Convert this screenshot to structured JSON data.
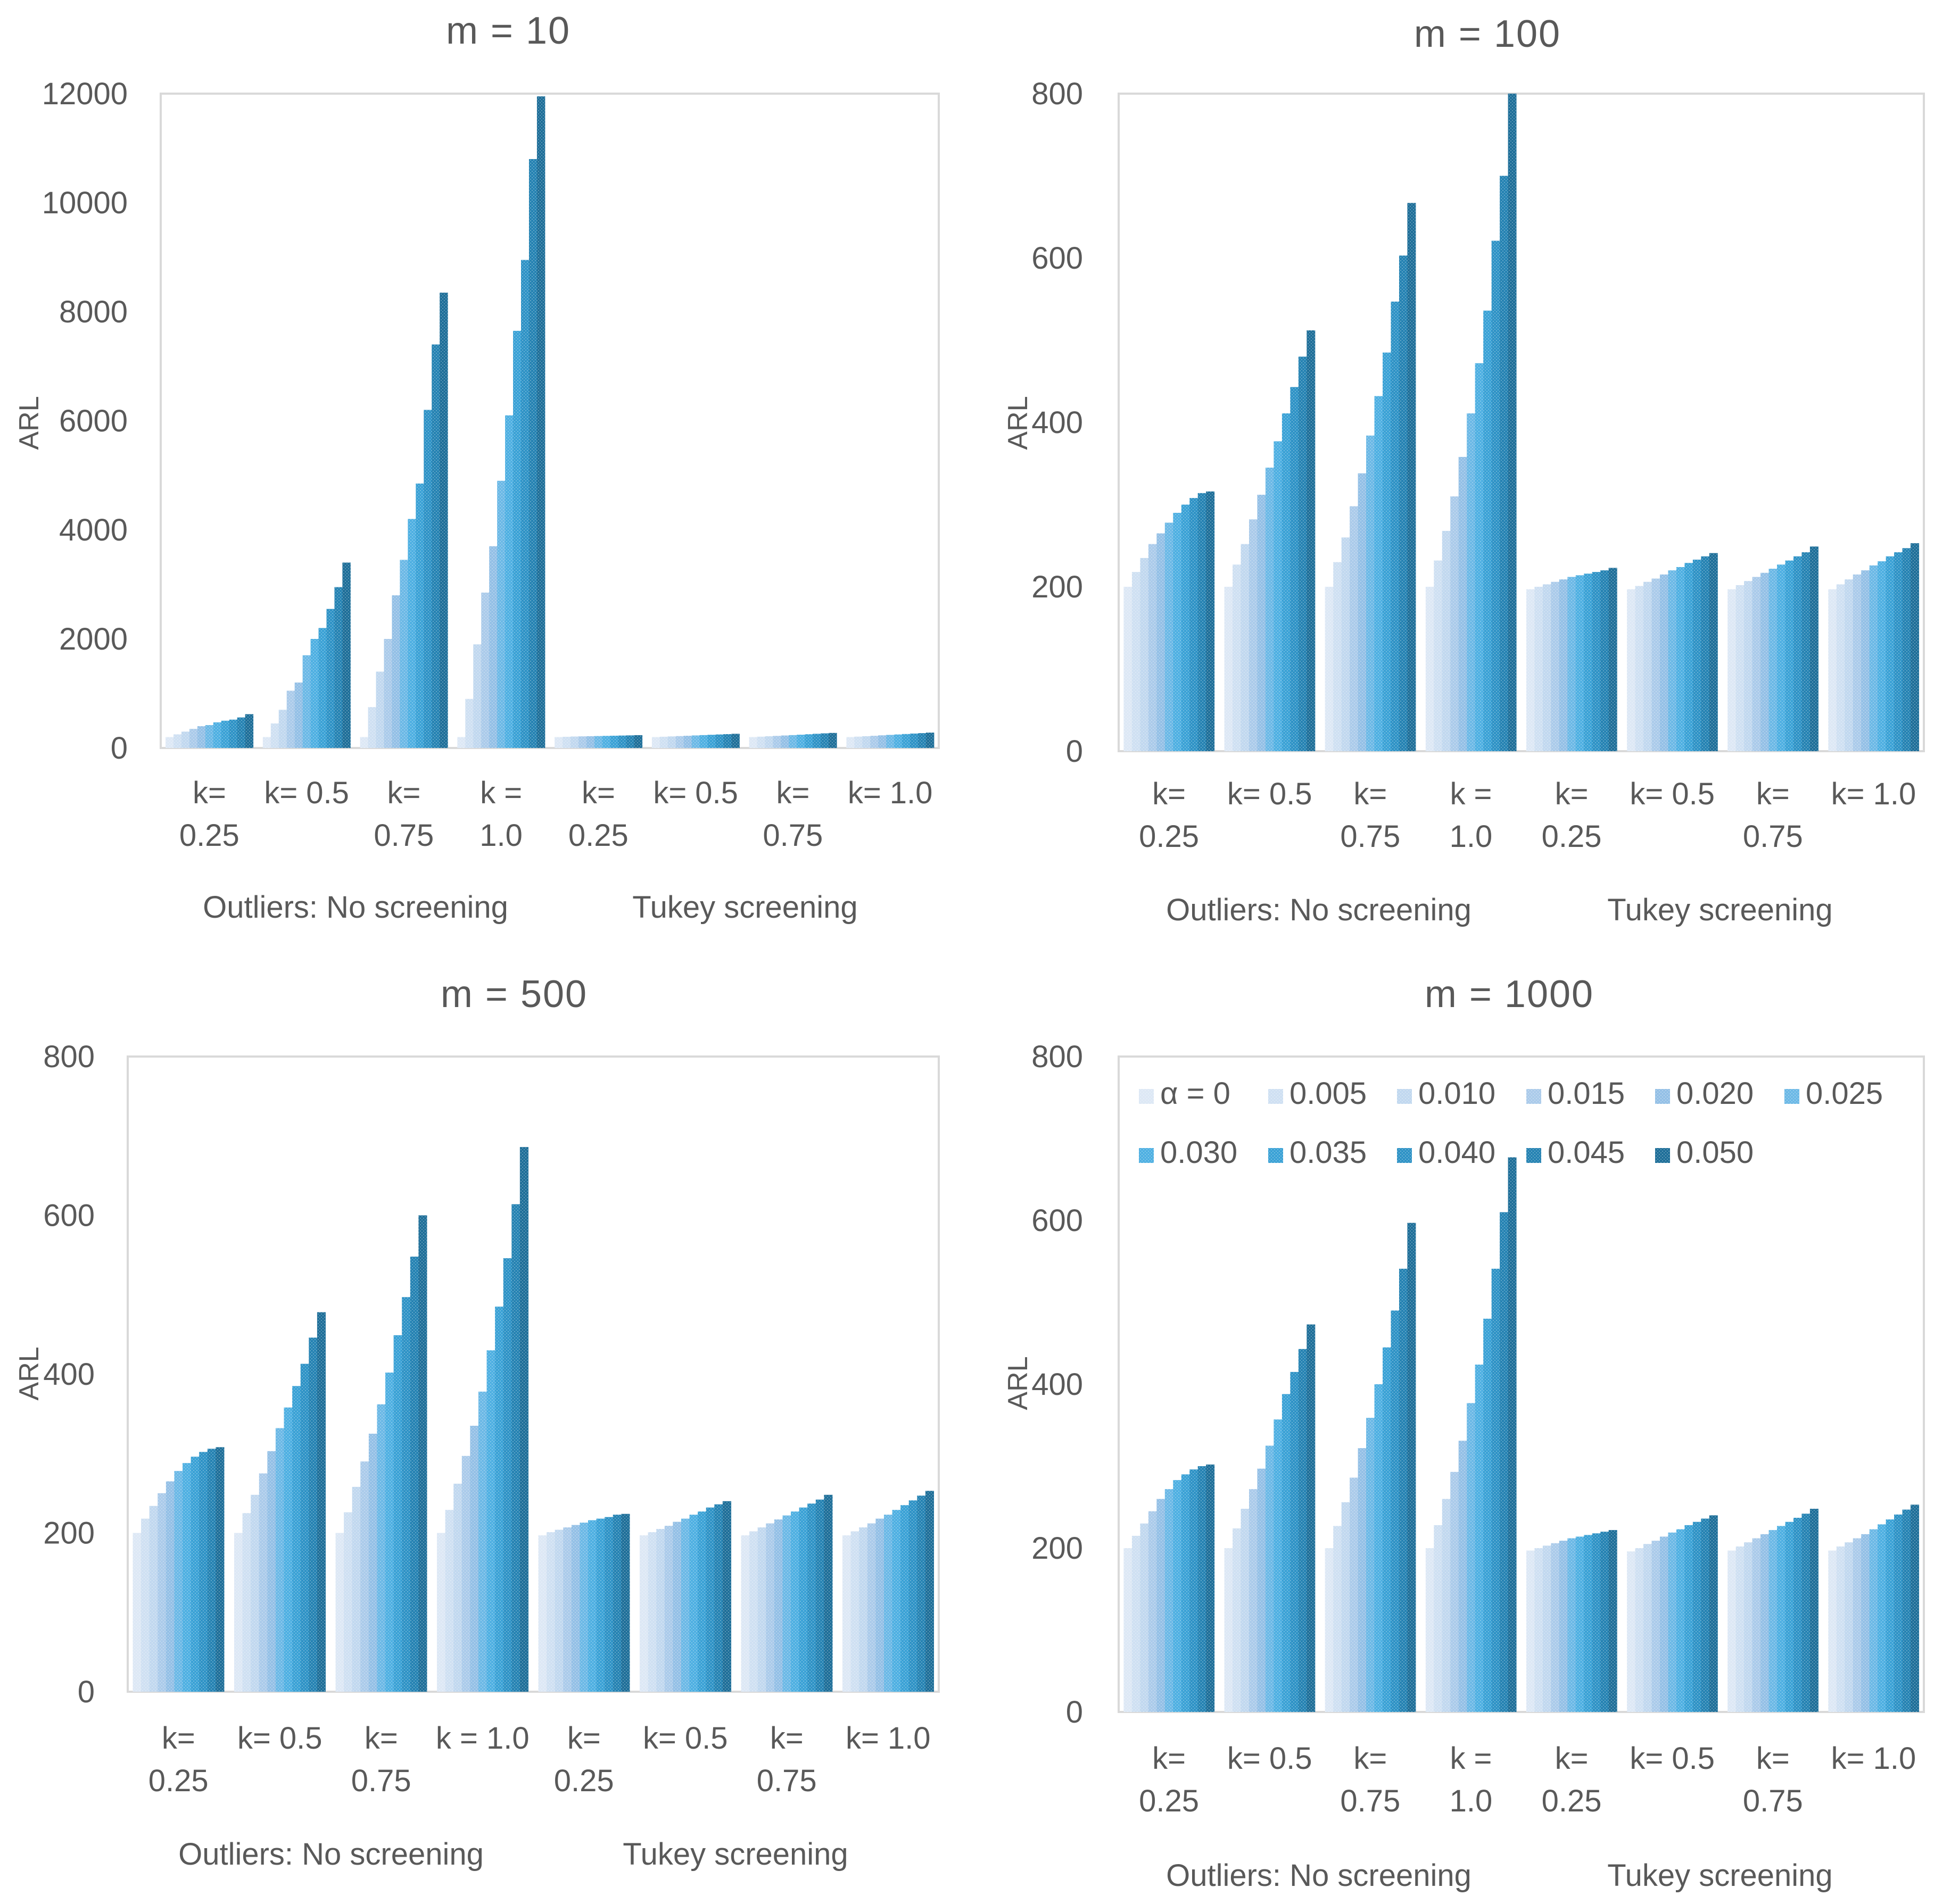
{
  "legend": {
    "labels": [
      "α = 0",
      "0.005",
      "0.010",
      "0.015",
      "0.020",
      "0.025",
      "0.030",
      "0.035",
      "0.040",
      "0.045",
      "0.050"
    ],
    "colors": [
      "#dde8f5",
      "#cfe0f2",
      "#c1d8ef",
      "#abcbea",
      "#94c0e6",
      "#6cb9e6",
      "#4fb0e2",
      "#3ba2d6",
      "#2f93c6",
      "#2683b3",
      "#1f6f99"
    ]
  },
  "chart_data": [
    {
      "type": "bar",
      "title": "m = 10",
      "ylabel": "ARL",
      "xlabel": "",
      "ylim": [
        0,
        12000
      ],
      "yticks": [
        0,
        2000,
        4000,
        6000,
        8000,
        10000,
        12000
      ],
      "categories": [
        [
          "k=",
          "0.25"
        ],
        [
          "k= 0.5"
        ],
        [
          "k=",
          "0.75"
        ],
        [
          "k =",
          "1.0"
        ],
        [
          "k=",
          "0.25"
        ],
        [
          "k= 0.5"
        ],
        [
          "k=",
          "0.75"
        ],
        [
          "k= 1.0"
        ]
      ],
      "groups": [
        "Outliers: No screening",
        "Tukey screening"
      ],
      "series_values": [
        [
          200,
          250,
          300,
          350,
          400,
          420,
          470,
          500,
          520,
          560,
          620
        ],
        [
          200,
          450,
          700,
          1050,
          1200,
          1700,
          2000,
          2200,
          2550,
          2950,
          3400
        ],
        [
          200,
          750,
          1400,
          2000,
          2800,
          3450,
          4200,
          4850,
          6200,
          7400,
          8350
        ],
        [
          200,
          900,
          1900,
          2850,
          3700,
          4900,
          6100,
          7650,
          8950,
          10800,
          11950
        ],
        [
          200,
          205,
          210,
          213,
          216,
          219,
          222,
          225,
          228,
          231,
          235
        ],
        [
          200,
          206,
          212,
          218,
          224,
          230,
          236,
          242,
          248,
          254,
          260
        ],
        [
          200,
          207,
          215,
          222,
          229,
          236,
          244,
          252,
          260,
          268,
          276
        ],
        [
          200,
          208,
          216,
          224,
          232,
          240,
          248,
          256,
          264,
          272,
          282
        ]
      ],
      "legend_position": "none"
    },
    {
      "type": "bar",
      "title": "m = 100",
      "ylabel": "ARL",
      "xlabel": "",
      "ylim": [
        0,
        800
      ],
      "yticks": [
        0,
        200,
        400,
        600,
        800
      ],
      "categories": [
        [
          "k=",
          "0.25"
        ],
        [
          "k= 0.5"
        ],
        [
          "k=",
          "0.75"
        ],
        [
          "k =",
          "1.0"
        ],
        [
          "k=",
          "0.25"
        ],
        [
          "k= 0.5"
        ],
        [
          "k=",
          "0.75"
        ],
        [
          "k= 1.0"
        ]
      ],
      "groups": [
        "Outliers: No screening",
        "Tukey screening"
      ],
      "series_values": [
        [
          200,
          218,
          235,
          252,
          265,
          278,
          290,
          300,
          308,
          314,
          316
        ],
        [
          200,
          227,
          252,
          282,
          312,
          345,
          377,
          411,
          443,
          480,
          512
        ],
        [
          200,
          230,
          260,
          298,
          338,
          384,
          432,
          485,
          547,
          603,
          667
        ],
        [
          200,
          232,
          268,
          310,
          358,
          411,
          472,
          536,
          621,
          700,
          800
        ],
        [
          197,
          200,
          203,
          206,
          209,
          212,
          214,
          216,
          218,
          220,
          223
        ],
        [
          197,
          201,
          206,
          210,
          215,
          220,
          224,
          229,
          233,
          237,
          241
        ],
        [
          197,
          202,
          207,
          212,
          217,
          222,
          227,
          232,
          237,
          242,
          249
        ],
        [
          197,
          203,
          209,
          215,
          220,
          226,
          231,
          237,
          242,
          247,
          253
        ]
      ],
      "legend_position": "none"
    },
    {
      "type": "bar",
      "title": "m = 500",
      "ylabel": "ARL",
      "xlabel": "",
      "ylim": [
        0,
        800
      ],
      "yticks": [
        0,
        200,
        400,
        600,
        800
      ],
      "categories": [
        [
          "k=",
          "0.25"
        ],
        [
          "k= 0.5"
        ],
        [
          "k=",
          "0.75"
        ],
        [
          "k = 1.0"
        ],
        [
          "k=",
          "0.25"
        ],
        [
          "k= 0.5"
        ],
        [
          "k=",
          "0.75"
        ],
        [
          "k= 1.0"
        ]
      ],
      "groups": [
        "Outliers: No screening",
        "Tukey screening"
      ],
      "series_values": [
        [
          200,
          218,
          234,
          250,
          265,
          278,
          288,
          296,
          302,
          306,
          308
        ],
        [
          200,
          225,
          248,
          275,
          303,
          332,
          358,
          385,
          413,
          446,
          478
        ],
        [
          200,
          226,
          258,
          290,
          325,
          362,
          402,
          449,
          497,
          548,
          600
        ],
        [
          200,
          229,
          262,
          297,
          335,
          378,
          430,
          485,
          546,
          614,
          686
        ],
        [
          197,
          201,
          204,
          207,
          210,
          213,
          216,
          218,
          220,
          223,
          224
        ],
        [
          197,
          201,
          205,
          209,
          214,
          218,
          223,
          227,
          232,
          236,
          240
        ],
        [
          197,
          202,
          207,
          212,
          217,
          222,
          227,
          232,
          237,
          242,
          248
        ],
        [
          197,
          202,
          207,
          212,
          218,
          223,
          229,
          235,
          241,
          247,
          253
        ]
      ],
      "legend_position": "none"
    },
    {
      "type": "bar",
      "title": "m = 1000",
      "ylabel": "ARL",
      "xlabel": "",
      "ylim": [
        0,
        800
      ],
      "yticks": [
        0,
        200,
        400,
        600,
        800
      ],
      "categories": [
        [
          "k=",
          "0.25"
        ],
        [
          "k= 0.5"
        ],
        [
          "k=",
          "0.75"
        ],
        [
          "k =",
          "1.0"
        ],
        [
          "k=",
          "0.25"
        ],
        [
          "k= 0.5"
        ],
        [
          "k=",
          "0.75"
        ],
        [
          "k= 1.0"
        ]
      ],
      "groups": [
        "Outliers: No screening",
        "Tukey screening"
      ],
      "series_values": [
        [
          200,
          215,
          230,
          245,
          260,
          272,
          283,
          290,
          296,
          300,
          302
        ],
        [
          200,
          224,
          248,
          272,
          297,
          325,
          357,
          388,
          415,
          443,
          473
        ],
        [
          200,
          227,
          256,
          286,
          322,
          359,
          400,
          445,
          490,
          541,
          597
        ],
        [
          200,
          228,
          260,
          293,
          331,
          377,
          424,
          480,
          541,
          610,
          677
        ],
        [
          197,
          200,
          203,
          206,
          209,
          212,
          214,
          216,
          218,
          220,
          222
        ],
        [
          196,
          200,
          205,
          209,
          214,
          219,
          223,
          228,
          232,
          236,
          240
        ],
        [
          197,
          202,
          207,
          212,
          217,
          222,
          227,
          232,
          237,
          242,
          248
        ],
        [
          197,
          202,
          207,
          212,
          217,
          223,
          229,
          235,
          241,
          247,
          253
        ]
      ],
      "legend_position": "top-left inside"
    }
  ]
}
